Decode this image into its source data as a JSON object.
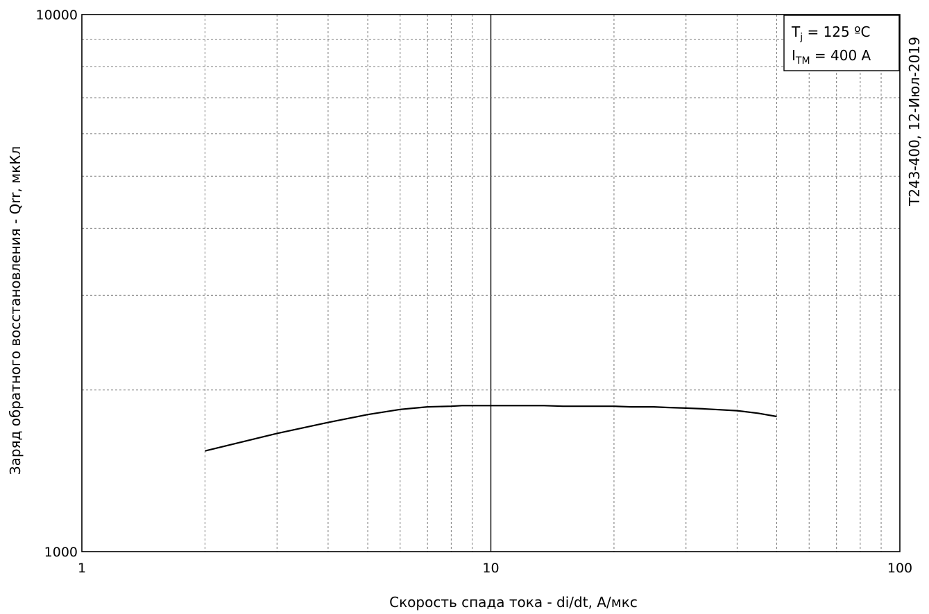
{
  "chart_data": {
    "type": "line",
    "x_scale": "log",
    "y_scale": "log",
    "xlim": [
      1,
      100
    ],
    "ylim": [
      1000,
      10000
    ],
    "x_ticks": [
      "1",
      "10",
      "100"
    ],
    "y_ticks": [
      "1000",
      "10000"
    ],
    "x_tick_values": [
      1,
      10,
      100
    ],
    "y_tick_values": [
      1000,
      10000
    ],
    "xlabel": "Скорость спада тока - di/dt, А/мкс",
    "ylabel": "Заряд обратного восстановления - Qrr, мкКл",
    "side_text": "Т243-400, 12-Июл-2019",
    "grid": true,
    "legend_placement": "top-right",
    "legend": [
      {
        "main": "T",
        "sub": "j",
        "rest": " = 125 ºC"
      },
      {
        "main": "I",
        "sub": "TM",
        "rest": " = 400 A"
      }
    ],
    "series": [
      {
        "color": "#000000",
        "x": [
          2,
          3,
          4,
          5,
          6,
          6.5,
          7,
          8,
          8.5,
          10,
          12,
          13.5,
          15,
          20,
          22,
          25,
          27,
          30,
          33,
          40,
          45,
          50
        ],
        "y": [
          1540,
          1660,
          1740,
          1800,
          1840,
          1850,
          1860,
          1865,
          1870,
          1870,
          1870,
          1870,
          1865,
          1865,
          1860,
          1860,
          1855,
          1850,
          1845,
          1830,
          1810,
          1785
        ]
      }
    ]
  }
}
